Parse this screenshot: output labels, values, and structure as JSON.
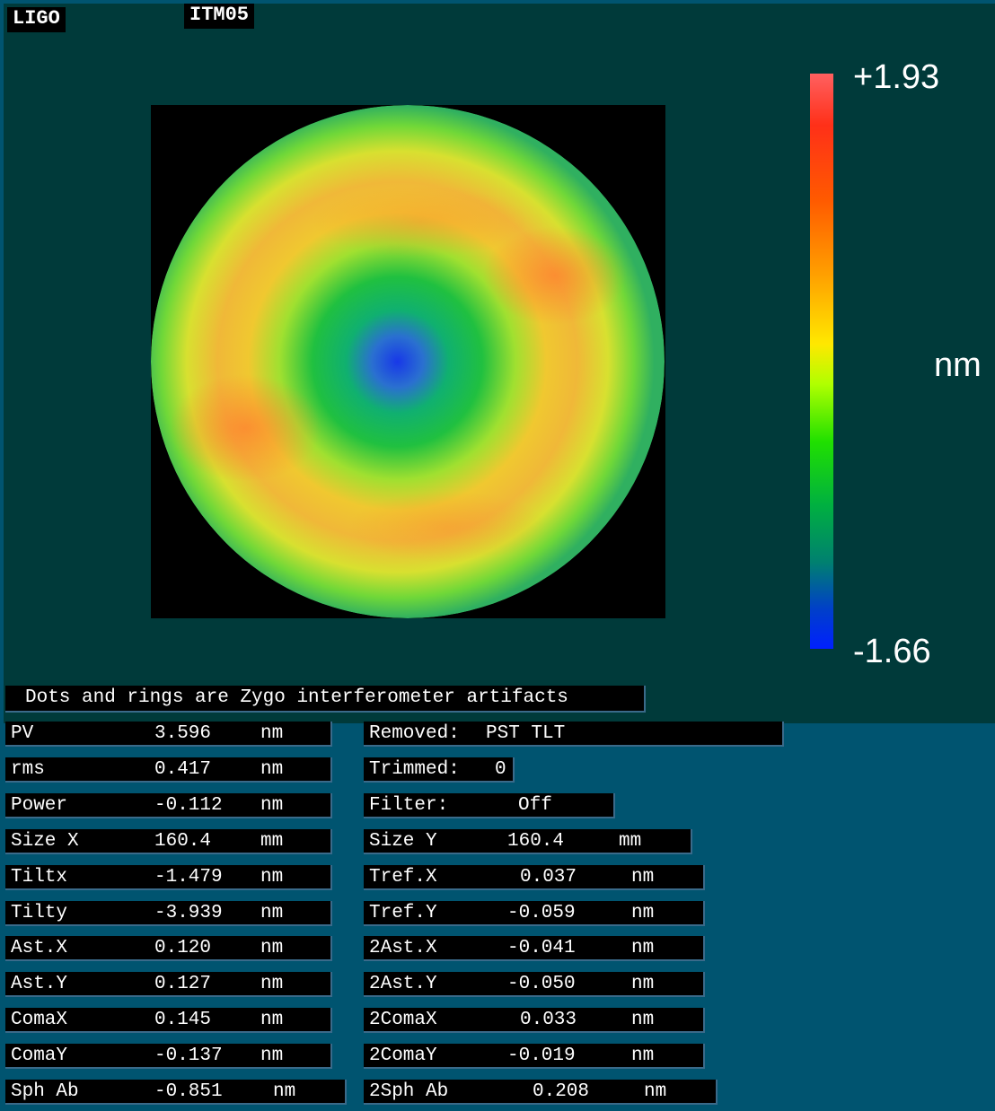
{
  "header": {
    "logo_text": "LIGO",
    "optic_id": "ITM05"
  },
  "colorbar": {
    "max_label": "+1.93",
    "min_label": "-1.66",
    "unit": "nm",
    "colors": [
      "#ff6060",
      "#ff3018",
      "#ffa000",
      "#ffe800",
      "#20e000",
      "#008070",
      "#0020ff"
    ]
  },
  "surface_map": {
    "description_colors": {
      "center": "#2040e0",
      "inner_ring": "#20c040",
      "outer_ring": "#f0c020",
      "edge": "#40c060"
    }
  },
  "note": "Dots and rings are Zygo interferometer artifacts",
  "left_fields": [
    {
      "label": "PV",
      "value": "3.596",
      "unit": "nm"
    },
    {
      "label": "rms",
      "value": "0.417",
      "unit": "nm"
    },
    {
      "label": "Power",
      "value": "-0.112",
      "unit": "nm"
    },
    {
      "label": "Size X",
      "value": "160.4",
      "unit": "mm"
    },
    {
      "label": "Tiltx",
      "value": "-1.479",
      "unit": "nm"
    },
    {
      "label": "Tilty",
      "value": "-3.939",
      "unit": "nm"
    },
    {
      "label": "Ast.X",
      "value": "0.120",
      "unit": "nm"
    },
    {
      "label": "Ast.Y",
      "value": "0.127",
      "unit": "nm"
    },
    {
      "label": "ComaX",
      "value": "0.145",
      "unit": "nm"
    },
    {
      "label": "ComaY",
      "value": "-0.137",
      "unit": "nm"
    },
    {
      "label": "Sph Ab",
      "value": "-0.851",
      "unit": "nm"
    }
  ],
  "right_fields": [
    {
      "label": "Removed:",
      "value": "PST TLT",
      "unit": ""
    },
    {
      "label": "Trimmed:",
      "value": "0",
      "unit": ""
    },
    {
      "label": "Filter:",
      "value": "Off",
      "unit": ""
    },
    {
      "label": "Size Y",
      "value": "160.4",
      "unit": "mm"
    },
    {
      "label": "Tref.X",
      "value": "0.037",
      "unit": "nm"
    },
    {
      "label": "Tref.Y",
      "value": "-0.059",
      "unit": "nm"
    },
    {
      "label": "2Ast.X",
      "value": "-0.041",
      "unit": "nm"
    },
    {
      "label": "2Ast.Y",
      "value": "-0.050",
      "unit": "nm"
    },
    {
      "label": "2ComaX",
      "value": "0.033",
      "unit": "nm"
    },
    {
      "label": "2ComaY",
      "value": "-0.019",
      "unit": "nm"
    },
    {
      "label": "2Sph Ab",
      "value": "0.208",
      "unit": "nm"
    }
  ]
}
